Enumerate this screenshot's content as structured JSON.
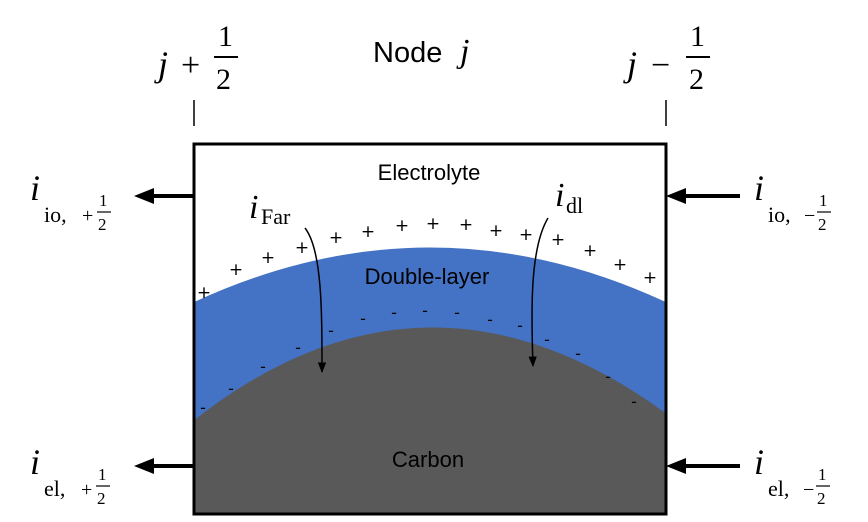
{
  "header": {
    "node_label": "Node",
    "node_index": "j",
    "left_face": {
      "symbol": "j",
      "operator": "+",
      "numerator": "1",
      "denominator": "2"
    },
    "right_face": {
      "symbol": "j",
      "operator": "−",
      "numerator": "1",
      "denominator": "2"
    }
  },
  "regions": {
    "electrolyte": "Electrolyte",
    "double_layer": "Double-layer",
    "carbon": "Carbon"
  },
  "internal_currents": {
    "faradaic": {
      "symbol": "i",
      "subscript": "Far"
    },
    "double_layer": {
      "symbol": "i",
      "subscript": "dl"
    }
  },
  "boundary_currents": {
    "ionic_out": {
      "symbol": "i",
      "subscript": "io,",
      "sign": "+",
      "numerator": "1",
      "denominator": "2"
    },
    "ionic_in": {
      "symbol": "i",
      "subscript": "io,",
      "sign": "−",
      "numerator": "1",
      "denominator": "2"
    },
    "electronic_out": {
      "symbol": "i",
      "subscript": "el,",
      "sign": "+",
      "numerator": "1",
      "denominator": "2"
    },
    "electronic_in": {
      "symbol": "i",
      "subscript": "el,",
      "sign": "−",
      "numerator": "1",
      "denominator": "2"
    }
  },
  "charges": {
    "positive": "+",
    "negative": "-"
  },
  "colors": {
    "double_layer": "#4472C4",
    "carbon": "#595959",
    "outline": "#000000",
    "background": "#ffffff"
  }
}
